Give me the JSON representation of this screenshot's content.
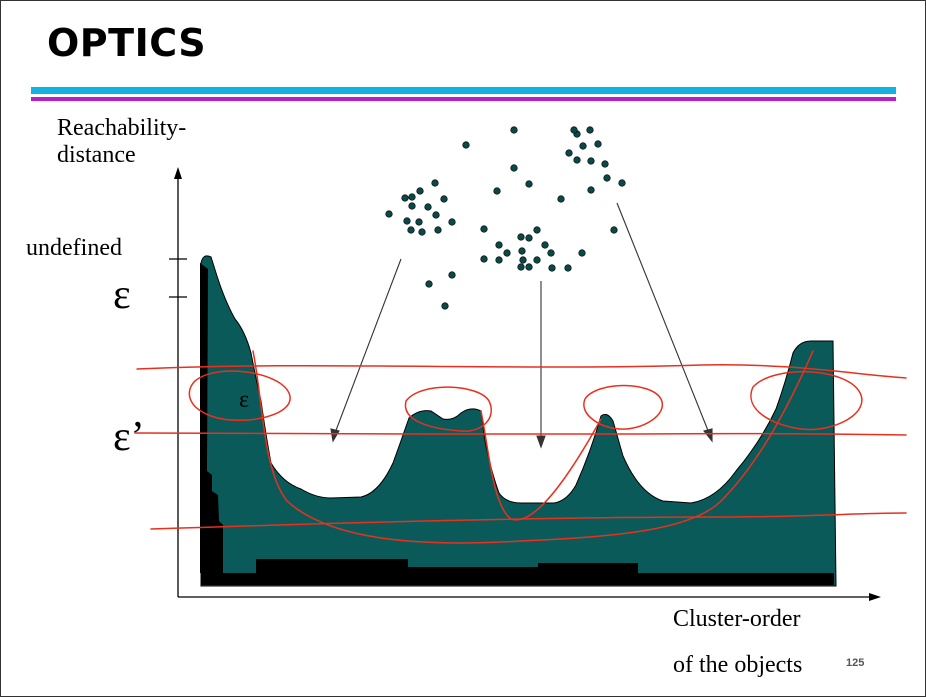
{
  "title": "OPTICS",
  "y_axis_label_line1": "Reachability-",
  "y_axis_label_line2": "distance",
  "undefined_label": "undefined",
  "epsilon_label": "ε",
  "epsilon_prime_label": "ε’",
  "small_epsilon_label": "ε",
  "x_axis_label_line1": "Cluster-order",
  "x_axis_label_line2": "of the objects",
  "page_number": "125",
  "colors": {
    "title_rule_top": "#12b3e3",
    "title_rule_bottom": "#b71fc7",
    "plot_fill": "#0b5a5a",
    "annotation_red": "#e8301e",
    "points": "#0b4848"
  }
}
